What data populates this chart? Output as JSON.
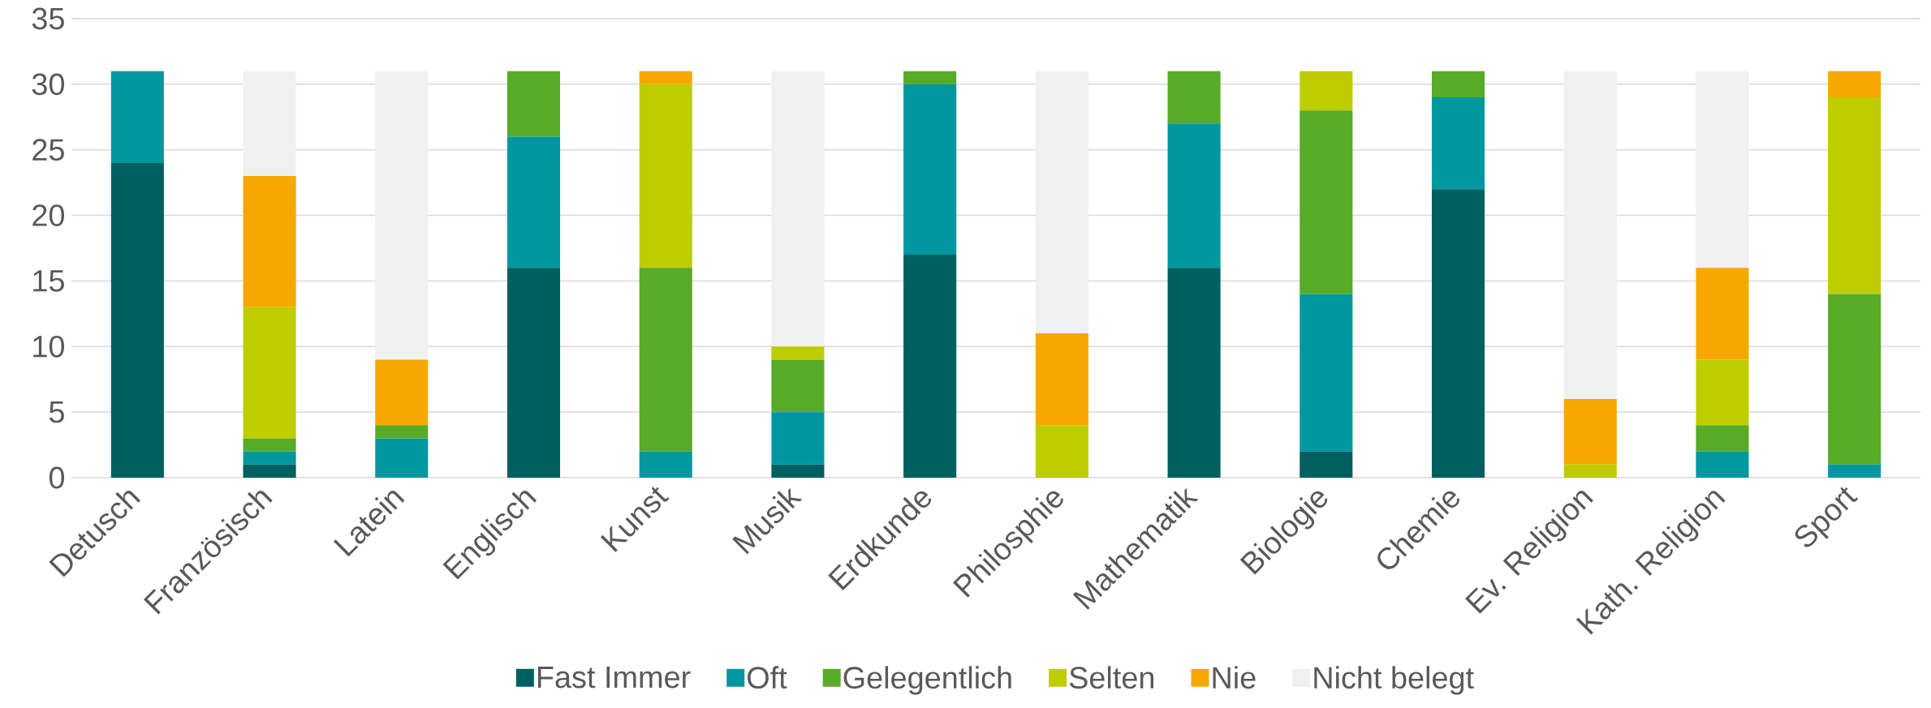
{
  "chart_data": {
    "type": "bar",
    "stacked": true,
    "categories": [
      "Detusch",
      "Französisch",
      "Latein",
      "Englisch",
      "Kunst",
      "Musik",
      "Erdkunde",
      "Philosphie",
      "Mathematik",
      "Biologie",
      "Chemie",
      "Ev. Religion",
      "Kath. Religion",
      "Sport"
    ],
    "series": [
      {
        "name": "Fast Immer",
        "color": "#005f61",
        "values": [
          24,
          1,
          0,
          16,
          0,
          1,
          17,
          0,
          16,
          2,
          22,
          0,
          0,
          0
        ]
      },
      {
        "name": "Oft",
        "color": "#0097a0",
        "values": [
          7,
          1,
          3,
          10,
          2,
          4,
          13,
          0,
          11,
          12,
          7,
          0,
          2,
          1
        ]
      },
      {
        "name": "Gelegentlich",
        "color": "#57ab27",
        "values": [
          0,
          1,
          1,
          5,
          14,
          4,
          1,
          0,
          4,
          14,
          2,
          0,
          2,
          13
        ]
      },
      {
        "name": "Selten",
        "color": "#bdcd00",
        "values": [
          0,
          10,
          0,
          0,
          14,
          1,
          0,
          4,
          0,
          3,
          0,
          1,
          5,
          15
        ]
      },
      {
        "name": "Nie",
        "color": "#f6a800",
        "values": [
          0,
          10,
          5,
          0,
          1,
          0,
          0,
          7,
          0,
          0,
          0,
          5,
          7,
          2
        ]
      },
      {
        "name": "Nicht belegt",
        "color": "#f0f0f0",
        "values": [
          0,
          8,
          22,
          0,
          0,
          21,
          0,
          20,
          0,
          0,
          0,
          25,
          15,
          0
        ]
      }
    ],
    "ylim": [
      0,
      35
    ],
    "yticks": [
      0,
      5,
      10,
      15,
      20,
      25,
      30,
      35
    ],
    "grid": "y",
    "legend": "bottom"
  }
}
